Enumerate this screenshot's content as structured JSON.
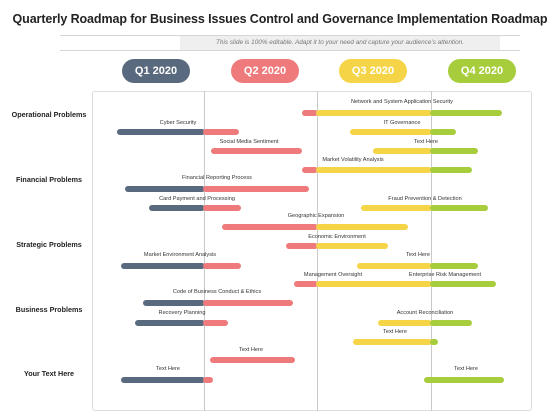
{
  "title": "Quarterly Roadmap for Business Issues Control and Governance Implementation Roadmap",
  "subtitle": "This slide is 100% editable. Adapt it to your need and capture your audience’s attention.",
  "colors": {
    "slate": "#5a6a7e",
    "coral": "#ee7a7b",
    "yellow": "#f5d547",
    "green": "#a8cd3c"
  },
  "quarters": [
    {
      "label": "Q1 2020",
      "color": "#5a6a7e"
    },
    {
      "label": "Q2 2020",
      "color": "#ee7a7b"
    },
    {
      "label": "Q3 2020",
      "color": "#f5d547"
    },
    {
      "label": "Q4 2020",
      "color": "#a8cd3c"
    }
  ],
  "categories": [
    "Operational Problems",
    "Financial Problems",
    "Strategic Problems",
    "Business Problems",
    "Your Text Here"
  ],
  "tasks": [
    {
      "label": "Network and System Application Security"
    },
    {
      "label": "Cyber Security"
    },
    {
      "label": "IT Governance"
    },
    {
      "label": "Social Media Sentiment"
    },
    {
      "label": "Text Here"
    },
    {
      "label": "Market Volatility Analysis"
    },
    {
      "label": "Financial Reporting Process"
    },
    {
      "label": "Card Payment and Processing"
    },
    {
      "label": "Fraud Prevention & Detection"
    },
    {
      "label": "Geographic Expansion"
    },
    {
      "label": "Economic Environment"
    },
    {
      "label": "Market Environment Analysis"
    },
    {
      "label": "Text Here"
    },
    {
      "label": "Management Oversight"
    },
    {
      "label": "Enterprise Risk Management"
    },
    {
      "label": "Code of Business Conduct & Ethics"
    },
    {
      "label": "Recovery Planning"
    },
    {
      "label": "Account Reconciliation"
    },
    {
      "label": "Text Here"
    },
    {
      "label": "Text Here"
    },
    {
      "label": "Text Here"
    },
    {
      "label": "Text Here"
    }
  ]
}
